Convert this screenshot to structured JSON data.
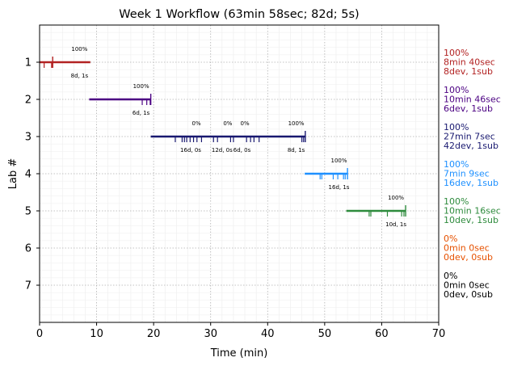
{
  "chart_data": {
    "type": "timeline",
    "title": "Week 1 Workflow (63min 58sec; 82d; 5s)",
    "xlabel": "Time (min)",
    "ylabel": "Lab #",
    "xlim": [
      0,
      70
    ],
    "ylim": [
      8,
      0
    ],
    "x_ticks": [
      0,
      10,
      20,
      30,
      40,
      50,
      60,
      70
    ],
    "y_ticks": [
      1,
      2,
      3,
      4,
      5,
      6,
      7
    ],
    "grid": true,
    "labs": [
      {
        "lab": 1,
        "color": "#b22222",
        "start": 0,
        "end": 8.9,
        "devs": [
          0.8,
          2.1,
          2.3
        ],
        "subs": [
          2.3
        ],
        "segments": [
          {
            "pct": "100%",
            "pct_x": 7,
            "count": "8d, 1s",
            "count_x": 7
          }
        ],
        "summary": [
          "100%",
          "8min 40sec",
          "8dev, 1sub"
        ]
      },
      {
        "lab": 2,
        "color": "#4b0082",
        "start": 8.7,
        "end": 19.5,
        "devs": [
          18.0,
          18.8,
          19.4
        ],
        "subs": [
          19.5
        ],
        "segments": [
          {
            "pct": "100%",
            "pct_x": 17.8,
            "count": "6d, 1s",
            "count_x": 17.8
          }
        ],
        "summary": [
          "100%",
          "10min 46sec",
          "6dev, 1sub"
        ]
      },
      {
        "lab": 3,
        "color": "#191970",
        "start": 19.5,
        "end": 46.6,
        "devs": [
          23.8,
          25.0,
          25.4,
          25.8,
          26.4,
          27.0,
          27.6,
          28.4,
          30.5,
          31.2,
          33.5,
          34.0,
          36.3,
          37.0,
          37.6,
          38.5,
          46.0,
          46.3
        ],
        "subs": [
          46.6
        ],
        "segments": [
          {
            "pct": "0%",
            "pct_x": 27.5,
            "count": "16d, 0s",
            "count_x": 26.5
          },
          {
            "pct": "0%",
            "pct_x": 33.0,
            "count": "12d, 0s",
            "count_x": 32.0
          },
          {
            "pct": "0%",
            "pct_x": 36.0,
            "count": "6d, 0s",
            "count_x": 35.5
          },
          {
            "pct": "100%",
            "pct_x": 45.0,
            "count": "8d, 1s",
            "count_x": 45.0
          }
        ],
        "summary": [
          "100%",
          "27min 7sec",
          "42dev, 1sub"
        ]
      },
      {
        "lab": 4,
        "color": "#1e90ff",
        "start": 46.5,
        "end": 54.0,
        "devs": [
          49.2,
          49.5,
          51.5,
          52.3,
          53.3,
          53.6
        ],
        "subs": [
          54.0
        ],
        "segments": [
          {
            "pct": "100%",
            "pct_x": 52.5,
            "count": "16d, 1s",
            "count_x": 52.5
          }
        ],
        "summary": [
          "100%",
          "7min 9sec",
          "16dev, 1sub"
        ]
      },
      {
        "lab": 5,
        "color": "#2e8b3d",
        "start": 53.8,
        "end": 64.2,
        "devs": [
          57.8,
          58.1,
          61.0,
          63.5,
          63.9
        ],
        "subs": [
          64.2
        ],
        "segments": [
          {
            "pct": "100%",
            "pct_x": 62.5,
            "count": "10d, 1s",
            "count_x": 62.5
          }
        ],
        "summary": [
          "100%",
          "10min 16sec",
          "10dev, 1sub"
        ]
      },
      {
        "lab": 6,
        "color": "#e65100",
        "start": null,
        "end": null,
        "devs": [],
        "subs": [],
        "segments": [],
        "summary": [
          "0%",
          "0min 0sec",
          "0dev, 0sub"
        ]
      },
      {
        "lab": 7,
        "color": "#000000",
        "start": null,
        "end": null,
        "devs": [],
        "subs": [],
        "segments": [],
        "summary": [
          "0%",
          "0min 0sec",
          "0dev, 0sub"
        ]
      }
    ]
  }
}
